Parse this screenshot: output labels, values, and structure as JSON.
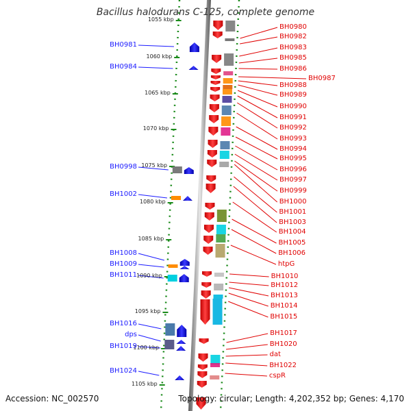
{
  "title": "Bacillus halodurans C-125, complete genome",
  "footer": {
    "accession": "Accession: NC_002570",
    "topology": "Topology: circular; Length: 4,202,352 bp; Genes: 4,170"
  },
  "colors": {
    "left_label": "#1a1aff",
    "right_label": "#e00000",
    "tick": "#1a8a1a",
    "backbone": "#7a7a7a",
    "forward_gene": "#ee0000",
    "reverse_gene": "#0000ee"
  },
  "ticks": [
    "1055 kbp",
    "1060 kbp",
    "1065 kbp",
    "1070 kbp",
    "1075 kbp",
    "1080 kbp",
    "1085 kbp",
    "1090 kbp",
    "1095 kbp",
    "1100 kbp",
    "1105 kbp"
  ],
  "left_labels": [
    "BH0981",
    "BH0984",
    "BH0998",
    "BH1002",
    "BH1008",
    "BH1009",
    "BH1011",
    "BH1016",
    "dps",
    "BH1019",
    "BH1024"
  ],
  "right_labels": [
    "BH0980",
    "BH0982",
    "BH0983",
    "BH0985",
    "BH0986",
    "BH0987",
    "BH0988",
    "BH0989",
    "BH0990",
    "BH0991",
    "BH0992",
    "BH0993",
    "BH0994",
    "BH0995",
    "BH0996",
    "BH0997",
    "BH0999",
    "BH1000",
    "BH1001",
    "BH1003",
    "BH1004",
    "BH1005",
    "BH1006",
    "htpG",
    "BH1010",
    "BH1012",
    "BH1013",
    "BH1014",
    "BH1015",
    "BH1017",
    "BH1020",
    "dat",
    "BH1022",
    "cspR"
  ]
}
